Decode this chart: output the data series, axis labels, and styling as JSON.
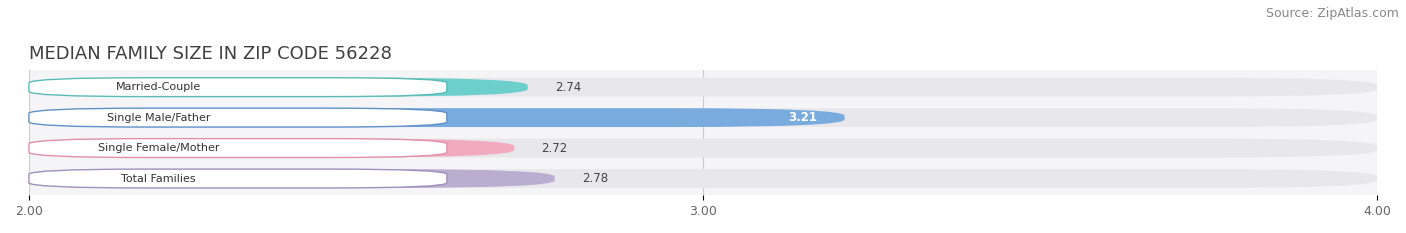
{
  "title": "MEDIAN FAMILY SIZE IN ZIP CODE 56228",
  "source": "Source: ZipAtlas.com",
  "categories": [
    "Married-Couple",
    "Single Male/Father",
    "Single Female/Mother",
    "Total Families"
  ],
  "values": [
    2.74,
    3.21,
    2.72,
    2.78
  ],
  "bar_colors": [
    "#6dcfcc",
    "#7aabdf",
    "#f2aabf",
    "#bbadd0"
  ],
  "bg_bar_color": "#e8e8ec",
  "label_box_color": "#ffffff",
  "label_box_edge_colors": [
    "#5abcb8",
    "#6090c8",
    "#e090a8",
    "#a090bc"
  ],
  "xlim": [
    2.0,
    4.0
  ],
  "xticks": [
    2.0,
    3.0,
    4.0
  ],
  "xtick_labels": [
    "2.00",
    "3.00",
    "4.00"
  ],
  "background_color": "#ffffff",
  "plot_area_color": "#f5f5f7",
  "title_fontsize": 13,
  "source_fontsize": 9,
  "label_fontsize": 8,
  "value_fontsize": 8.5,
  "tick_fontsize": 9,
  "bar_height": 0.62,
  "figsize": [
    14.06,
    2.33
  ],
  "dpi": 100
}
